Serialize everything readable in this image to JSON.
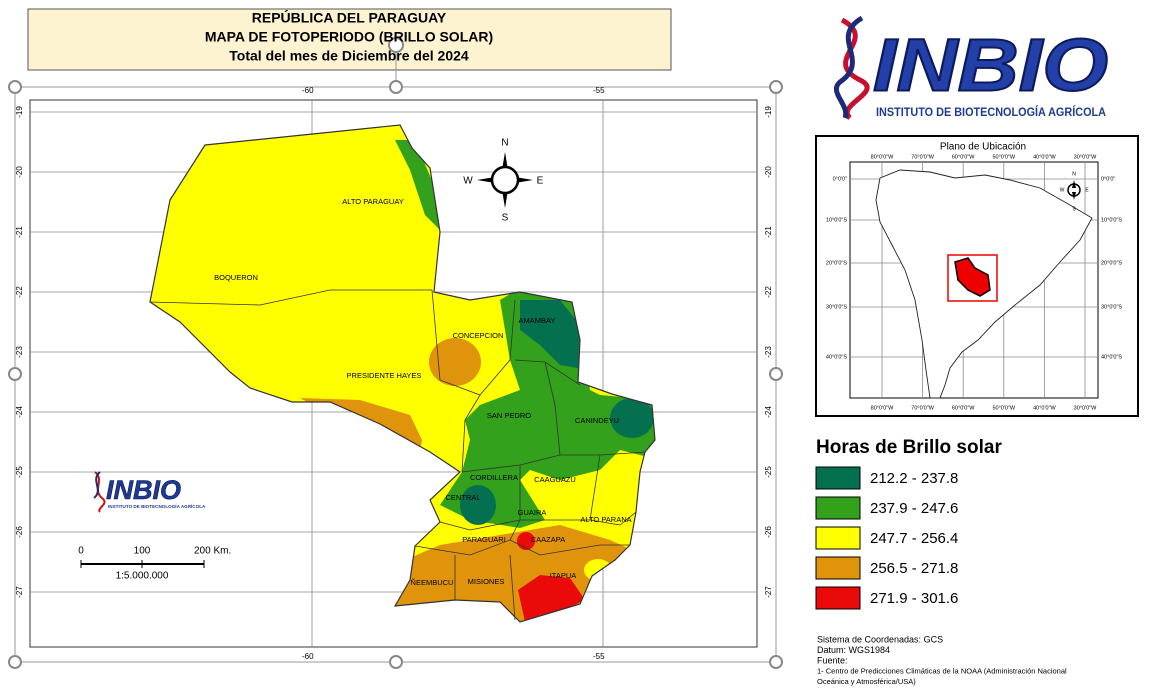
{
  "header": {
    "title_lines": [
      "REPÚBLICA DEL PARAGUAY",
      "MAPA DE FOTOPERIODO (BRILLO SOLAR)",
      "Total del mes de Diciembre del 2024"
    ]
  },
  "logo": {
    "name": "INBIO",
    "subtitle": "INSTITUTO DE BIOTECNOLOGÍA AGRÍCOLA"
  },
  "map": {
    "lat_ticks": [
      -19,
      -20,
      -21,
      -22,
      -23,
      -24,
      -25,
      -26,
      -27
    ],
    "lon_ticks": [
      -60,
      -55
    ],
    "compass": {
      "n": "N",
      "s": "S",
      "e": "E",
      "w": "W"
    },
    "departments": [
      "ALTO PARAGUAY",
      "BOQUERON",
      "CONCEPCION",
      "AMAMBAY",
      "PRESIDENTE HAYES",
      "SAN PEDRO",
      "CANINDEYU",
      "CORDILLERA",
      "CAAGUAZU",
      "CENTRAL",
      "GUAIRA",
      "ALTO PARANA",
      "PARAGUARI",
      "CAAZAPA",
      "ÑEEMBUCU",
      "MISIONES",
      "ITAPUA"
    ],
    "scale_bar": {
      "labels": [
        "0",
        "100",
        "200 Km."
      ],
      "ratio": "1:5.000.000"
    }
  },
  "inset": {
    "title": "Plano de Ubicación",
    "lon_labels": [
      "80°0'0\"W",
      "70°0'0\"W",
      "60°0'0\"W",
      "50°0'0\"W",
      "40°0'0\"W",
      "30°0'0\"W"
    ],
    "lat_labels": [
      "0°0'0\"",
      "10°0'0\"S",
      "20°0'0\"S",
      "30°0'0\"S",
      "40°0'0\"S"
    ]
  },
  "legend": {
    "title": "Horas de Brillo solar",
    "items": [
      {
        "label": "212.2 - 237.8",
        "color": "#04704f"
      },
      {
        "label": "237.9 - 247.6",
        "color": "#33a11b"
      },
      {
        "label": "247.7 - 256.4",
        "color": "#ffff00"
      },
      {
        "label": "256.5 - 271.8",
        "color": "#e0940c"
      },
      {
        "label": "271.9 - 301.6",
        "color": "#ea0a0a"
      }
    ]
  },
  "notes": {
    "lines": [
      "Sistema de Coordenadas: GCS",
      "Datum: WGS1984",
      "Fuente:",
      "1- Centro de Predicciones Climáticas de la NOAA (Administración Nacional",
      "Oceánica y Atmosférica/USA)"
    ]
  }
}
